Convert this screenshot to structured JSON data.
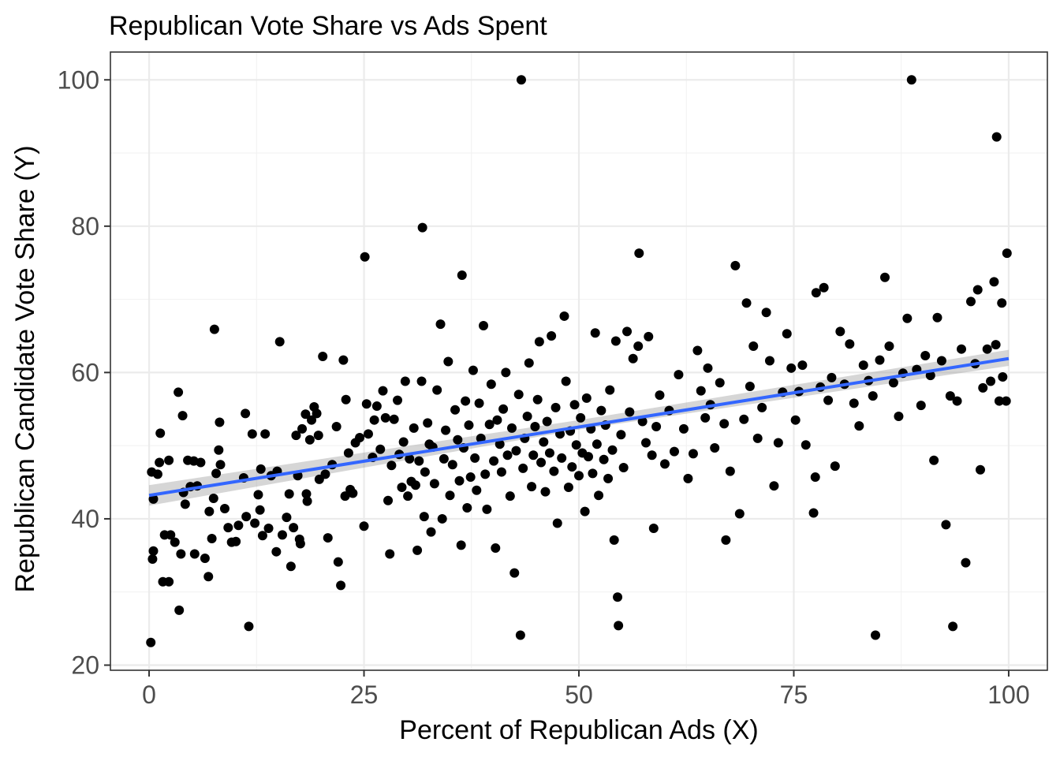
{
  "chart_data": {
    "type": "scatter",
    "title": "Republican Vote Share vs Ads Spent",
    "xlabel": "Percent of Republican Ads (X)",
    "ylabel": "Republican Candidate Vote Share (Y)",
    "xlim": [
      -4.5,
      104.5
    ],
    "ylim": [
      19.3,
      103.8
    ],
    "x_ticks": [
      0,
      25,
      50,
      75,
      100
    ],
    "y_ticks": [
      20,
      40,
      60,
      80,
      100
    ],
    "grid": true,
    "legend": "none",
    "colors": {
      "points": "#000000",
      "fit_line": "#3366ff",
      "confidence_band": "#999999"
    },
    "fit": {
      "method": "linear",
      "intercept": 43.2,
      "slope": 0.187,
      "se_band": [
        [
          0,
          41.8,
          44.6
        ],
        [
          50,
          52.2,
          53.5
        ],
        [
          100,
          60.9,
          63.1
        ]
      ]
    },
    "points": [
      [
        0.2,
        23.1
      ],
      [
        0.3,
        46.4
      ],
      [
        0.4,
        34.5
      ],
      [
        0.5,
        35.6
      ],
      [
        0.5,
        42.7
      ],
      [
        1.0,
        46.1
      ],
      [
        1.2,
        47.7
      ],
      [
        1.3,
        51.7
      ],
      [
        1.6,
        31.4
      ],
      [
        2.3,
        31.4
      ],
      [
        1.8,
        37.8
      ],
      [
        2.3,
        48.0
      ],
      [
        2.5,
        37.8
      ],
      [
        3.0,
        36.8
      ],
      [
        3.4,
        57.3
      ],
      [
        3.5,
        27.5
      ],
      [
        3.7,
        35.2
      ],
      [
        3.9,
        54.1
      ],
      [
        4.0,
        43.6
      ],
      [
        4.2,
        42.0
      ],
      [
        4.5,
        48.0
      ],
      [
        4.8,
        44.4
      ],
      [
        5.2,
        47.9
      ],
      [
        5.3,
        35.2
      ],
      [
        5.6,
        44.5
      ],
      [
        6.0,
        47.7
      ],
      [
        6.5,
        34.6
      ],
      [
        7.0,
        41.0
      ],
      [
        6.9,
        32.1
      ],
      [
        7.3,
        37.3
      ],
      [
        7.6,
        65.9
      ],
      [
        7.5,
        42.8
      ],
      [
        7.8,
        46.2
      ],
      [
        8.1,
        49.4
      ],
      [
        8.2,
        53.2
      ],
      [
        8.3,
        47.4
      ],
      [
        8.8,
        41.4
      ],
      [
        9.2,
        38.8
      ],
      [
        9.6,
        36.8
      ],
      [
        10.1,
        36.9
      ],
      [
        10.4,
        39.1
      ],
      [
        11.0,
        45.6
      ],
      [
        11.3,
        40.3
      ],
      [
        11.2,
        54.4
      ],
      [
        11.6,
        25.3
      ],
      [
        12.0,
        51.6
      ],
      [
        12.3,
        39.4
      ],
      [
        12.7,
        43.3
      ],
      [
        12.9,
        41.2
      ],
      [
        13.0,
        46.8
      ],
      [
        13.2,
        37.7
      ],
      [
        13.5,
        51.6
      ],
      [
        13.9,
        38.7
      ],
      [
        14.2,
        45.9
      ],
      [
        14.9,
        46.5
      ],
      [
        14.8,
        35.5
      ],
      [
        15.2,
        64.2
      ],
      [
        15.5,
        37.8
      ],
      [
        16.0,
        40.2
      ],
      [
        16.3,
        43.4
      ],
      [
        16.5,
        33.5
      ],
      [
        16.8,
        38.8
      ],
      [
        17.1,
        51.4
      ],
      [
        17.3,
        45.9
      ],
      [
        17.5,
        37.2
      ],
      [
        17.6,
        36.6
      ],
      [
        17.8,
        52.3
      ],
      [
        18.2,
        54.3
      ],
      [
        18.3,
        43.4
      ],
      [
        18.4,
        42.4
      ],
      [
        18.7,
        50.8
      ],
      [
        18.9,
        53.5
      ],
      [
        19.2,
        55.3
      ],
      [
        19.5,
        54.4
      ],
      [
        19.8,
        45.4
      ],
      [
        19.7,
        51.4
      ],
      [
        20.2,
        62.2
      ],
      [
        20.5,
        46.1
      ],
      [
        20.8,
        37.4
      ],
      [
        21.3,
        47.4
      ],
      [
        21.8,
        52.6
      ],
      [
        22.0,
        34.1
      ],
      [
        22.3,
        30.9
      ],
      [
        22.6,
        61.7
      ],
      [
        22.8,
        43.1
      ],
      [
        22.9,
        56.3
      ],
      [
        23.2,
        49.0
      ],
      [
        23.4,
        44.0
      ],
      [
        23.7,
        43.5
      ],
      [
        24.0,
        50.4
      ],
      [
        24.5,
        51.1
      ],
      [
        25.0,
        39.0
      ],
      [
        25.1,
        75.8
      ],
      [
        25.3,
        55.7
      ],
      [
        25.5,
        51.6
      ],
      [
        26.0,
        48.4
      ],
      [
        26.2,
        53.5
      ],
      [
        26.5,
        55.4
      ],
      [
        26.9,
        49.5
      ],
      [
        27.2,
        57.5
      ],
      [
        27.5,
        53.8
      ],
      [
        27.8,
        42.5
      ],
      [
        28.0,
        35.2
      ],
      [
        28.2,
        47.3
      ],
      [
        28.5,
        53.6
      ],
      [
        28.9,
        56.2
      ],
      [
        29.1,
        48.8
      ],
      [
        29.4,
        44.3
      ],
      [
        29.6,
        50.5
      ],
      [
        29.8,
        58.8
      ],
      [
        30.1,
        43.1
      ],
      [
        30.3,
        48.2
      ],
      [
        30.5,
        45.1
      ],
      [
        30.8,
        52.4
      ],
      [
        31.0,
        44.6
      ],
      [
        31.2,
        35.7
      ],
      [
        31.4,
        47.9
      ],
      [
        31.7,
        58.8
      ],
      [
        31.8,
        79.8
      ],
      [
        32.0,
        40.3
      ],
      [
        32.1,
        46.4
      ],
      [
        32.4,
        53.1
      ],
      [
        32.6,
        50.2
      ],
      [
        32.8,
        38.2
      ],
      [
        33.0,
        49.8
      ],
      [
        33.2,
        44.8
      ],
      [
        33.5,
        57.6
      ],
      [
        33.9,
        66.6
      ],
      [
        34.1,
        40.0
      ],
      [
        34.3,
        48.2
      ],
      [
        34.5,
        52.1
      ],
      [
        34.8,
        61.5
      ],
      [
        35.0,
        43.2
      ],
      [
        35.3,
        47.4
      ],
      [
        35.6,
        54.9
      ],
      [
        35.9,
        50.8
      ],
      [
        36.1,
        45.2
      ],
      [
        36.3,
        36.4
      ],
      [
        36.4,
        73.3
      ],
      [
        36.6,
        49.7
      ],
      [
        36.8,
        56.1
      ],
      [
        37.0,
        41.5
      ],
      [
        37.2,
        52.8
      ],
      [
        37.4,
        45.7
      ],
      [
        37.7,
        60.3
      ],
      [
        37.9,
        48.3
      ],
      [
        38.1,
        43.9
      ],
      [
        38.4,
        55.8
      ],
      [
        38.6,
        51.0
      ],
      [
        38.9,
        66.4
      ],
      [
        39.1,
        46.1
      ],
      [
        39.3,
        41.3
      ],
      [
        39.6,
        52.9
      ],
      [
        39.8,
        58.4
      ],
      [
        40.1,
        47.9
      ],
      [
        40.3,
        36.0
      ],
      [
        40.5,
        53.5
      ],
      [
        40.8,
        50.2
      ],
      [
        41.0,
        46.4
      ],
      [
        41.2,
        55.0
      ],
      [
        41.5,
        60.0
      ],
      [
        41.7,
        48.7
      ],
      [
        42.0,
        43.1
      ],
      [
        42.2,
        52.4
      ],
      [
        42.5,
        32.6
      ],
      [
        42.7,
        49.3
      ],
      [
        43.0,
        57.0
      ],
      [
        43.2,
        24.1
      ],
      [
        43.3,
        100.0
      ],
      [
        43.5,
        46.9
      ],
      [
        43.7,
        51.0
      ],
      [
        44.0,
        54.0
      ],
      [
        44.2,
        61.3
      ],
      [
        44.5,
        44.4
      ],
      [
        44.7,
        48.7
      ],
      [
        44.9,
        52.6
      ],
      [
        45.2,
        56.3
      ],
      [
        45.4,
        64.2
      ],
      [
        45.6,
        47.7
      ],
      [
        45.9,
        50.5
      ],
      [
        46.1,
        43.7
      ],
      [
        46.3,
        53.3
      ],
      [
        46.6,
        49.0
      ],
      [
        46.8,
        65.0
      ],
      [
        47.1,
        46.5
      ],
      [
        47.3,
        55.2
      ],
      [
        47.5,
        39.4
      ],
      [
        47.8,
        51.6
      ],
      [
        48.0,
        48.3
      ],
      [
        48.3,
        67.7
      ],
      [
        48.5,
        58.8
      ],
      [
        48.8,
        44.3
      ],
      [
        49.0,
        52.0
      ],
      [
        49.2,
        47.1
      ],
      [
        49.5,
        55.6
      ],
      [
        49.7,
        50.1
      ],
      [
        50.0,
        45.9
      ],
      [
        50.2,
        53.8
      ],
      [
        50.4,
        49.0
      ],
      [
        50.7,
        41.0
      ],
      [
        50.9,
        56.5
      ],
      [
        51.1,
        48.5
      ],
      [
        51.4,
        52.3
      ],
      [
        51.6,
        46.2
      ],
      [
        51.9,
        65.4
      ],
      [
        52.1,
        50.2
      ],
      [
        52.3,
        43.2
      ],
      [
        52.6,
        54.8
      ],
      [
        52.9,
        48.1
      ],
      [
        53.1,
        52.8
      ],
      [
        53.4,
        45.5
      ],
      [
        53.6,
        57.6
      ],
      [
        53.9,
        49.4
      ],
      [
        54.1,
        37.1
      ],
      [
        54.3,
        64.3
      ],
      [
        54.5,
        29.3
      ],
      [
        54.6,
        25.4
      ],
      [
        54.9,
        51.5
      ],
      [
        55.2,
        47.0
      ],
      [
        55.6,
        65.6
      ],
      [
        55.9,
        54.6
      ],
      [
        56.3,
        61.9
      ],
      [
        56.9,
        63.6
      ],
      [
        57.0,
        76.3
      ],
      [
        57.4,
        53.3
      ],
      [
        57.8,
        50.4
      ],
      [
        58.1,
        64.9
      ],
      [
        58.5,
        48.7
      ],
      [
        58.7,
        38.7
      ],
      [
        59.0,
        52.6
      ],
      [
        59.4,
        56.9
      ],
      [
        60.0,
        47.5
      ],
      [
        60.5,
        54.8
      ],
      [
        61.1,
        49.2
      ],
      [
        61.6,
        59.7
      ],
      [
        62.2,
        52.3
      ],
      [
        62.7,
        45.5
      ],
      [
        63.3,
        48.9
      ],
      [
        63.8,
        63.0
      ],
      [
        64.2,
        57.5
      ],
      [
        64.7,
        53.8
      ],
      [
        65.0,
        60.6
      ],
      [
        65.3,
        55.6
      ],
      [
        65.8,
        49.7
      ],
      [
        66.4,
        58.6
      ],
      [
        66.9,
        53.0
      ],
      [
        67.1,
        37.1
      ],
      [
        67.6,
        46.5
      ],
      [
        68.2,
        74.6
      ],
      [
        68.7,
        40.7
      ],
      [
        69.2,
        53.6
      ],
      [
        69.5,
        69.5
      ],
      [
        69.9,
        58.1
      ],
      [
        70.3,
        63.6
      ],
      [
        70.8,
        51.0
      ],
      [
        71.3,
        55.2
      ],
      [
        71.8,
        68.2
      ],
      [
        72.2,
        61.6
      ],
      [
        72.7,
        44.5
      ],
      [
        73.2,
        50.4
      ],
      [
        73.7,
        57.3
      ],
      [
        74.2,
        65.3
      ],
      [
        74.7,
        60.6
      ],
      [
        75.2,
        53.5
      ],
      [
        75.6,
        57.4
      ],
      [
        76.0,
        61.0
      ],
      [
        76.4,
        50.1
      ],
      [
        77.3,
        40.8
      ],
      [
        77.5,
        45.7
      ],
      [
        77.6,
        70.9
      ],
      [
        78.1,
        58.0
      ],
      [
        78.5,
        71.6
      ],
      [
        79.0,
        56.2
      ],
      [
        79.4,
        59.3
      ],
      [
        79.8,
        47.2
      ],
      [
        80.4,
        65.6
      ],
      [
        80.9,
        58.4
      ],
      [
        81.5,
        63.9
      ],
      [
        82.0,
        55.8
      ],
      [
        82.6,
        52.7
      ],
      [
        83.1,
        61.0
      ],
      [
        83.7,
        58.9
      ],
      [
        84.2,
        56.8
      ],
      [
        84.5,
        24.1
      ],
      [
        85.0,
        61.7
      ],
      [
        85.6,
        73.0
      ],
      [
        86.1,
        63.6
      ],
      [
        86.6,
        58.6
      ],
      [
        87.2,
        54.0
      ],
      [
        87.7,
        59.9
      ],
      [
        88.2,
        67.4
      ],
      [
        88.7,
        100.0
      ],
      [
        89.3,
        60.4
      ],
      [
        89.8,
        55.5
      ],
      [
        90.3,
        62.3
      ],
      [
        90.9,
        59.6
      ],
      [
        91.3,
        48.0
      ],
      [
        91.7,
        67.5
      ],
      [
        92.2,
        61.6
      ],
      [
        92.7,
        39.2
      ],
      [
        93.2,
        56.8
      ],
      [
        93.5,
        25.3
      ],
      [
        94.0,
        56.1
      ],
      [
        94.5,
        63.2
      ],
      [
        95.0,
        34.0
      ],
      [
        95.6,
        69.7
      ],
      [
        96.1,
        61.2
      ],
      [
        96.4,
        71.3
      ],
      [
        96.7,
        46.7
      ],
      [
        97.0,
        57.9
      ],
      [
        97.5,
        63.2
      ],
      [
        97.9,
        58.8
      ],
      [
        98.3,
        72.4
      ],
      [
        98.6,
        92.2
      ],
      [
        98.5,
        63.8
      ],
      [
        98.9,
        56.1
      ],
      [
        99.2,
        69.5
      ],
      [
        99.3,
        59.4
      ],
      [
        99.7,
        56.1
      ],
      [
        99.8,
        76.3
      ]
    ]
  }
}
